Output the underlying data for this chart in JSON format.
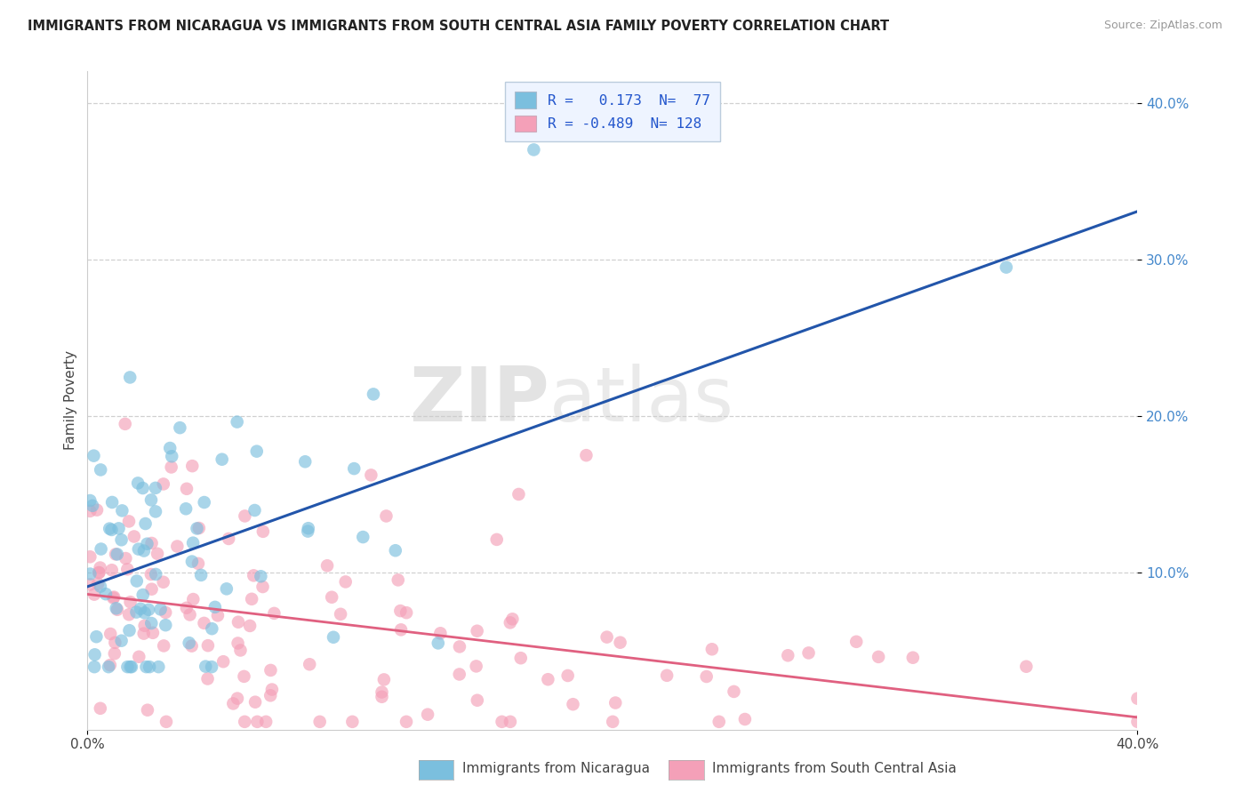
{
  "title": "IMMIGRANTS FROM NICARAGUA VS IMMIGRANTS FROM SOUTH CENTRAL ASIA FAMILY POVERTY CORRELATION CHART",
  "source": "Source: ZipAtlas.com",
  "ylabel": "Family Poverty",
  "xlim": [
    0.0,
    0.4
  ],
  "ylim": [
    0.0,
    0.42
  ],
  "legend_r1": "0.173",
  "legend_n1": "77",
  "legend_r2": "-0.489",
  "legend_n2": "128",
  "watermark_bold": "ZIP",
  "watermark_light": "atlas",
  "scatter1_color": "#7bbfde",
  "scatter2_color": "#f4a0b8",
  "line1_color": "#2255aa",
  "line2_color": "#e06080",
  "grid_color": "#d0d0d0",
  "background_color": "#ffffff",
  "tick_color": "#4488cc",
  "title_color": "#222222",
  "source_color": "#999999",
  "legend_face": "#eef4ff",
  "legend_edge": "#bbccdd",
  "legend_text_color": "#2255cc",
  "bottom_label_color": "#444444"
}
